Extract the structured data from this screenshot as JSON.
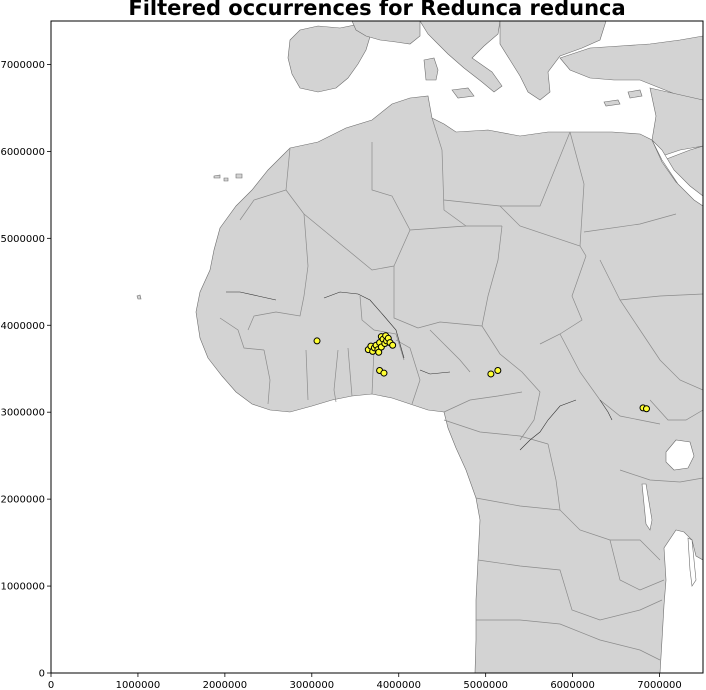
{
  "title": "Filtered occurrences for Redunca redunca",
  "colors": {
    "land": "#d3d3d3",
    "border": "#8c8c8c",
    "water": "#ffffff",
    "marker_fill": "#ffff33",
    "marker_edge": "#000000"
  },
  "chart_data": {
    "type": "scatter",
    "title": "Filtered occurrences for Redunca redunca",
    "xlabel": "",
    "ylabel": "",
    "xlim": [
      0,
      7500000
    ],
    "ylim": [
      0,
      7500000
    ],
    "x_ticks": [
      0,
      1000000,
      2000000,
      3000000,
      4000000,
      5000000,
      6000000,
      7000000
    ],
    "y_ticks": [
      0,
      1000000,
      2000000,
      3000000,
      4000000,
      5000000,
      6000000,
      7000000
    ],
    "x_tick_labels": [
      "0",
      "1000000",
      "2000000",
      "3000000",
      "4000000",
      "5000000",
      "6000000",
      "7000000"
    ],
    "y_tick_labels": [
      "0",
      "1000000",
      "2000000",
      "3000000",
      "4000000",
      "5000000",
      "6000000",
      "7000000"
    ],
    "grid": false,
    "points": [
      {
        "x": 3060000,
        "y": 3820000
      },
      {
        "x": 3650000,
        "y": 3720000
      },
      {
        "x": 3680000,
        "y": 3760000
      },
      {
        "x": 3700000,
        "y": 3700000
      },
      {
        "x": 3720000,
        "y": 3740000
      },
      {
        "x": 3740000,
        "y": 3770000
      },
      {
        "x": 3760000,
        "y": 3720000
      },
      {
        "x": 3770000,
        "y": 3690000
      },
      {
        "x": 3780000,
        "y": 3800000
      },
      {
        "x": 3800000,
        "y": 3750000
      },
      {
        "x": 3800000,
        "y": 3870000
      },
      {
        "x": 3820000,
        "y": 3840000
      },
      {
        "x": 3840000,
        "y": 3790000
      },
      {
        "x": 3850000,
        "y": 3880000
      },
      {
        "x": 3860000,
        "y": 3820000
      },
      {
        "x": 3880000,
        "y": 3850000
      },
      {
        "x": 3900000,
        "y": 3800000
      },
      {
        "x": 3930000,
        "y": 3770000
      },
      {
        "x": 3780000,
        "y": 3480000
      },
      {
        "x": 3830000,
        "y": 3450000
      },
      {
        "x": 5060000,
        "y": 3440000
      },
      {
        "x": 5140000,
        "y": 3480000
      },
      {
        "x": 6810000,
        "y": 3050000
      },
      {
        "x": 6850000,
        "y": 3040000
      }
    ]
  }
}
